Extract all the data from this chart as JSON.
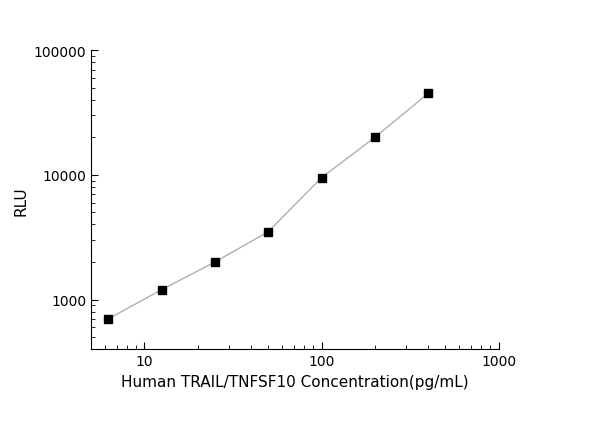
{
  "x": [
    6.25,
    12.5,
    25,
    50,
    100,
    200,
    400
  ],
  "y": [
    700,
    1200,
    2000,
    3500,
    9500,
    20000,
    45000
  ],
  "xlabel": "Human TRAIL/TNFSF10 Concentration(pg/mL)",
  "ylabel": "RLU",
  "xlim": [
    5,
    1000
  ],
  "ylim": [
    400,
    100000
  ],
  "marker": "s",
  "marker_color": "black",
  "marker_size": 6,
  "line_color": "#b0b0b0",
  "line_width": 1.0,
  "background_color": "#ffffff",
  "xticks": [
    10,
    100,
    1000
  ],
  "yticks": [
    1000,
    10000,
    100000
  ],
  "xlabel_fontsize": 11,
  "ylabel_fontsize": 11,
  "tick_labelsize": 10
}
